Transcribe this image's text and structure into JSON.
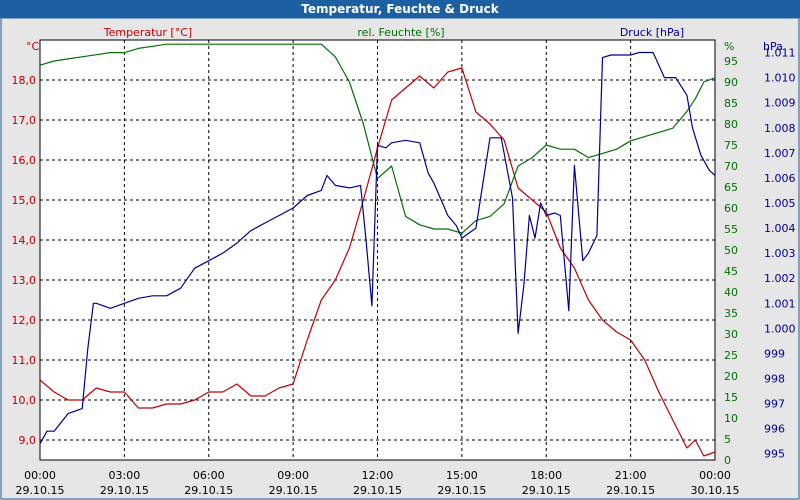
{
  "chart_data": {
    "type": "line",
    "title": "Temperatur, Feuchte & Druck",
    "x_ticks": [
      {
        "time": "00:00",
        "date": "29.10.15",
        "h": 0
      },
      {
        "time": "03:00",
        "date": "29.10.15",
        "h": 3
      },
      {
        "time": "06:00",
        "date": "29.10.15",
        "h": 6
      },
      {
        "time": "09:00",
        "date": "29.10.15",
        "h": 9
      },
      {
        "time": "12:00",
        "date": "29.10.15",
        "h": 12
      },
      {
        "time": "15:00",
        "date": "29.10.15",
        "h": 15
      },
      {
        "time": "18:00",
        "date": "29.10.15",
        "h": 18
      },
      {
        "time": "21:00",
        "date": "29.10.15",
        "h": 21
      },
      {
        "time": "00:00",
        "date": "30.10.15",
        "h": 24
      }
    ],
    "xlim": [
      0,
      24
    ],
    "grid": true,
    "axes": {
      "temp": {
        "unit": "°C",
        "label": "Temperatur [°C]",
        "ylim": [
          8.5,
          19.0
        ],
        "ticks": [
          "9,0",
          "10,0",
          "11,0",
          "12,0",
          "13,0",
          "14,0",
          "15,0",
          "16,0",
          "17,0",
          "18,0"
        ],
        "tick_values": [
          9,
          10,
          11,
          12,
          13,
          14,
          15,
          16,
          17,
          18
        ],
        "color": "#c00000"
      },
      "hum": {
        "unit": "%",
        "label": "rel. Feuchte [%]",
        "ylim": [
          0,
          100
        ],
        "ticks": [
          "0",
          "5",
          "10",
          "15",
          "20",
          "25",
          "30",
          "35",
          "40",
          "45",
          "50",
          "55",
          "60",
          "65",
          "70",
          "75",
          "80",
          "85",
          "90",
          "95"
        ],
        "tick_values": [
          0,
          5,
          10,
          15,
          20,
          25,
          30,
          35,
          40,
          45,
          50,
          55,
          60,
          65,
          70,
          75,
          80,
          85,
          90,
          95
        ],
        "color": "#007000"
      },
      "press": {
        "unit": "hPa",
        "label": "Druck [hPa]",
        "ylim": [
          994.75,
          1011.5
        ],
        "ticks": [
          "995",
          "996",
          "997",
          "998",
          "999",
          "1.000",
          "1.001",
          "1.002",
          "1.003",
          "1.004",
          "1.005",
          "1.006",
          "1.007",
          "1.008",
          "1.009",
          "1.010",
          "1.011"
        ],
        "tick_values": [
          995,
          996,
          997,
          998,
          999,
          1000,
          1001,
          1002,
          1003,
          1004,
          1005,
          1006,
          1007,
          1008,
          1009,
          1010,
          1011
        ],
        "color": "#000090"
      }
    },
    "series": [
      {
        "name": "Temperatur [°C]",
        "axis": "temp",
        "color": "#c00000",
        "x": [
          0,
          0.5,
          1.0,
          1.5,
          2.0,
          2.5,
          3.0,
          3.5,
          4.0,
          4.5,
          5.0,
          5.5,
          6.0,
          6.5,
          7.0,
          7.5,
          8.0,
          8.5,
          9.0,
          9.5,
          10.0,
          10.5,
          11.0,
          11.5,
          12.0,
          12.5,
          13.0,
          13.5,
          14.0,
          14.5,
          15.0,
          15.5,
          16.0,
          16.5,
          17.0,
          17.5,
          18.0,
          18.5,
          19.0,
          19.5,
          20.0,
          20.5,
          21.0,
          21.5,
          22.0,
          22.5,
          23.0,
          23.3,
          23.6,
          24.0
        ],
        "y": [
          10.5,
          10.2,
          10.0,
          10.0,
          10.3,
          10.2,
          10.2,
          9.8,
          9.8,
          9.9,
          9.9,
          10.0,
          10.2,
          10.2,
          10.4,
          10.1,
          10.1,
          10.3,
          10.4,
          11.5,
          12.5,
          13.0,
          13.8,
          15.0,
          16.3,
          17.5,
          17.8,
          18.1,
          17.8,
          18.2,
          18.3,
          17.2,
          16.9,
          16.5,
          15.3,
          15.0,
          14.7,
          13.8,
          13.3,
          12.5,
          12.0,
          11.7,
          11.5,
          11.0,
          10.2,
          9.5,
          8.8,
          9.0,
          8.6,
          8.7
        ]
      },
      {
        "name": "rel. Feuchte [%]",
        "axis": "hum",
        "color": "#007000",
        "x": [
          0,
          0.5,
          1.0,
          1.5,
          2.0,
          2.5,
          3.0,
          3.5,
          4.0,
          4.5,
          5.0,
          5.5,
          6.0,
          6.5,
          7.0,
          7.5,
          8.0,
          8.5,
          9.0,
          9.5,
          10.0,
          10.5,
          11.0,
          11.5,
          12.0,
          12.5,
          13.0,
          13.5,
          14.0,
          14.5,
          15.0,
          15.5,
          16.0,
          16.5,
          17.0,
          17.5,
          18.0,
          18.5,
          19.0,
          19.5,
          20.0,
          20.5,
          21.0,
          21.5,
          22.0,
          22.5,
          23.0,
          23.3,
          23.6,
          24.0
        ],
        "y": [
          94,
          95,
          95.5,
          96,
          96.5,
          97,
          97,
          98,
          98.5,
          99,
          99,
          99,
          99,
          99,
          99,
          99,
          99,
          99,
          99,
          99,
          99,
          96,
          90,
          80,
          67,
          70,
          58,
          56,
          55,
          55,
          54,
          57,
          58,
          61,
          70,
          72,
          75,
          74,
          74,
          72,
          73,
          74,
          76,
          77,
          78,
          79,
          83,
          86,
          90,
          91
        ]
      },
      {
        "name": "Druck [hPa]",
        "axis": "press",
        "color": "#000090",
        "x": [
          0,
          0.25,
          0.5,
          1.0,
          1.5,
          1.7,
          1.9,
          2.0,
          2.5,
          3.0,
          3.5,
          4.0,
          4.5,
          5.0,
          5.5,
          6.0,
          6.5,
          7.0,
          7.5,
          8.0,
          8.5,
          9.0,
          9.5,
          10.0,
          10.2,
          10.5,
          11.0,
          11.4,
          11.6,
          11.8,
          12.0,
          12.3,
          12.5,
          13.0,
          13.5,
          13.8,
          14.0,
          14.5,
          14.8,
          15.0,
          15.5,
          16.0,
          16.4,
          16.8,
          17.0,
          17.2,
          17.4,
          17.6,
          17.8,
          18.0,
          18.3,
          18.5,
          18.8,
          19.0,
          19.3,
          19.5,
          19.8,
          20.0,
          20.3,
          20.7,
          21.0,
          21.3,
          21.8,
          22.2,
          22.6,
          23.0,
          23.2,
          23.5,
          23.8,
          24.0
        ],
        "y": [
          995.4,
          995.9,
          995.9,
          996.6,
          996.8,
          999.2,
          1001.0,
          1001.0,
          1000.8,
          1001.0,
          1001.2,
          1001.3,
          1001.3,
          1001.6,
          1002.4,
          1002.7,
          1003.0,
          1003.4,
          1003.9,
          1004.2,
          1004.5,
          1004.8,
          1005.3,
          1005.5,
          1006.1,
          1005.7,
          1005.6,
          1005.7,
          1003.4,
          1000.9,
          1007.3,
          1007.2,
          1007.4,
          1007.5,
          1007.4,
          1006.2,
          1005.8,
          1004.5,
          1004.1,
          1003.6,
          1004.0,
          1007.6,
          1007.6,
          1005.2,
          999.8,
          1001.7,
          1004.5,
          1003.6,
          1005.0,
          1004.5,
          1004.6,
          1004.5,
          1000.7,
          1006.5,
          1002.7,
          1003.0,
          1003.7,
          1010.8,
          1010.9,
          1010.9,
          1010.9,
          1011.0,
          1011.0,
          1010.0,
          1010.0,
          1009.3,
          1008.0,
          1006.9,
          1006.3,
          1006.1
        ]
      }
    ]
  }
}
